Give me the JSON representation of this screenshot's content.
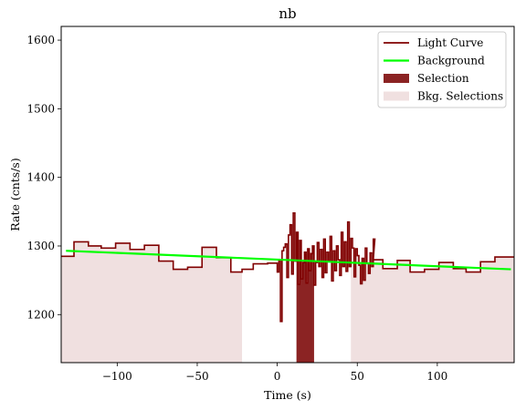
{
  "chart_data": {
    "type": "line",
    "title": "nb",
    "xlabel": "Time (s)",
    "ylabel": "Rate (cnts/s)",
    "xlim": [
      -135,
      148
    ],
    "ylim": [
      1130,
      1620
    ],
    "xticks": [
      -100,
      -50,
      0,
      50,
      100
    ],
    "yticks": [
      1200,
      1300,
      1400,
      1500,
      1600
    ],
    "grid": false,
    "legend_position": "top-right",
    "legend": [
      {
        "label": "Light Curve",
        "kind": "line",
        "color": "#800000"
      },
      {
        "label": "Background",
        "kind": "line",
        "color": "#00ff00"
      },
      {
        "label": "Selection",
        "kind": "patch",
        "color": "#8b2323"
      },
      {
        "label": "Bkg. Selections",
        "kind": "patch",
        "color": "#f0e0e0"
      }
    ],
    "colors": {
      "light_curve": "#800000",
      "background": "#00ff00",
      "selection": "#8b2323",
      "bkg_selection": "#f0e0e0"
    },
    "light_curve_coarse": {
      "edges": [
        -135,
        -127,
        -118,
        -110,
        -101,
        -92,
        -83,
        -74,
        -65,
        -56,
        -47,
        -38,
        -29,
        -22,
        -15,
        -6,
        0
      ],
      "rates": [
        1285,
        1306,
        1300,
        1297,
        1304,
        1295,
        1301,
        1278,
        1266,
        1269,
        1298,
        1283,
        1262,
        1266,
        1274,
        1275
      ]
    },
    "light_curve_fine": {
      "start": 0,
      "step": 1.0,
      "rates": [
        1262,
        1279,
        1190,
        1293,
        1298,
        1303,
        1254,
        1316,
        1331,
        1259,
        1348,
        1278,
        1320,
        1244,
        1308,
        1252,
        1276,
        1291,
        1246,
        1296,
        1264,
        1289,
        1300,
        1243,
        1276,
        1305,
        1270,
        1295,
        1254,
        1310,
        1261,
        1291,
        1278,
        1314,
        1249,
        1293,
        1264,
        1300,
        1280,
        1257,
        1320,
        1270,
        1306,
        1263,
        1335,
        1270,
        1311,
        1297,
        1255,
        1296,
        1286,
        1272,
        1245,
        1282,
        1250,
        1297,
        1275,
        1260,
        1290,
        1270,
        1310
      ]
    },
    "light_curve_coarse_after": {
      "edges": [
        60,
        66,
        75,
        83,
        92,
        101,
        110,
        118,
        127,
        136,
        148
      ],
      "rates": [
        1280,
        1267,
        1279,
        1262,
        1266,
        1276,
        1267,
        1262,
        1277,
        1284
      ]
    },
    "background_line": {
      "x": [
        -132,
        146
      ],
      "y": [
        1293,
        1266
      ]
    },
    "selection_interval": [
      12,
      23
    ],
    "bkg_selection_intervals": [
      [
        -135,
        -22
      ],
      [
        46,
        148
      ]
    ]
  }
}
